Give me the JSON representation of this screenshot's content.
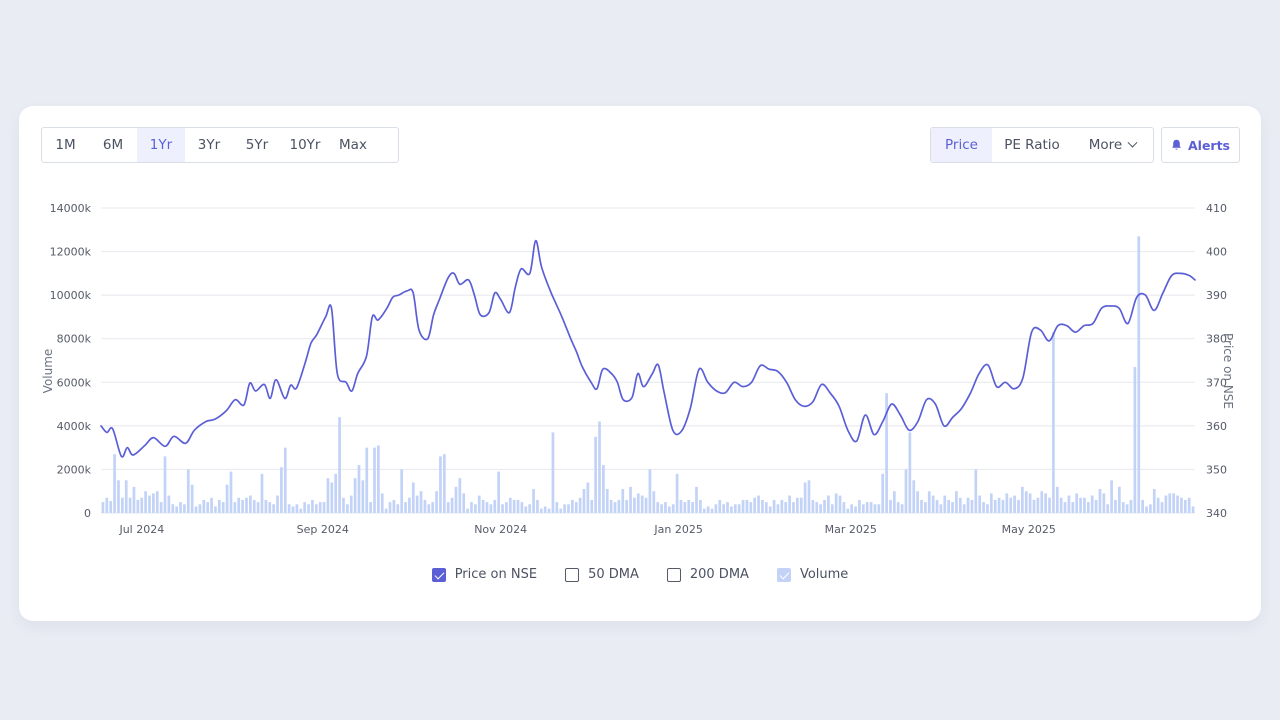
{
  "range_tabs": [
    {
      "label": "1M",
      "active": false
    },
    {
      "label": "6M",
      "active": false
    },
    {
      "label": "1Yr",
      "active": true
    },
    {
      "label": "3Yr",
      "active": false
    },
    {
      "label": "5Yr",
      "active": false
    },
    {
      "label": "10Yr",
      "active": false
    },
    {
      "label": "Max",
      "active": false
    }
  ],
  "metric_tabs": [
    {
      "label": "Price",
      "active": true
    },
    {
      "label": "PE Ratio",
      "active": false
    },
    {
      "label": "More",
      "active": false
    }
  ],
  "alerts_label": "Alerts",
  "colors": {
    "accent": "#5b5fd6",
    "volume": "#c3d3f7",
    "grid": "#e6e8ee"
  },
  "legend": [
    {
      "label": "Price on NSE",
      "checked": true
    },
    {
      "label": "50 DMA",
      "checked": false
    },
    {
      "label": "200 DMA",
      "checked": false
    },
    {
      "label": "Volume",
      "checked": true
    }
  ],
  "chart_data": {
    "type": "line",
    "x_range": [
      "2024-06-17",
      "2025-06-27"
    ],
    "x_ticks": [
      {
        "label": "Jul 2024",
        "date": "2024-07-01"
      },
      {
        "label": "Sep 2024",
        "date": "2024-09-01"
      },
      {
        "label": "Nov 2024",
        "date": "2024-11-01"
      },
      {
        "label": "Jan 2025",
        "date": "2025-01-01"
      },
      {
        "label": "Mar 2025",
        "date": "2025-03-01"
      },
      {
        "label": "May 2025",
        "date": "2025-05-01"
      }
    ],
    "y_left": {
      "label": "Volume",
      "range": [
        0,
        14000
      ],
      "ticks": [
        "0",
        "2000k",
        "4000k",
        "6000k",
        "8000k",
        "10000k",
        "12000k",
        "14000k"
      ]
    },
    "y_right": {
      "label": "Price on NSE",
      "range": [
        340,
        410
      ],
      "ticks": [
        "340",
        "350",
        "360",
        "370",
        "380",
        "390",
        "400",
        "410"
      ]
    },
    "grid": true,
    "legend_position": "bottom-center",
    "series": [
      {
        "name": "Price on NSE",
        "type": "line",
        "data": [
          [
            "2024-06-17",
            360.0
          ],
          [
            "2024-06-19",
            358.5
          ],
          [
            "2024-06-21",
            359.3
          ],
          [
            "2024-06-24",
            353.0
          ],
          [
            "2024-06-26",
            355.0
          ],
          [
            "2024-06-28",
            353.3
          ],
          [
            "2024-07-02",
            355.5
          ],
          [
            "2024-07-05",
            357.3
          ],
          [
            "2024-07-09",
            355.3
          ],
          [
            "2024-07-12",
            357.6
          ],
          [
            "2024-07-16",
            356.0
          ],
          [
            "2024-07-19",
            359.0
          ],
          [
            "2024-07-23",
            361.0
          ],
          [
            "2024-07-26",
            361.5
          ],
          [
            "2024-07-30",
            363.5
          ],
          [
            "2024-08-02",
            366.0
          ],
          [
            "2024-08-05",
            364.8
          ],
          [
            "2024-08-07",
            369.8
          ],
          [
            "2024-08-09",
            368.0
          ],
          [
            "2024-08-12",
            369.5
          ],
          [
            "2024-08-14",
            366.3
          ],
          [
            "2024-08-16",
            370.6
          ],
          [
            "2024-08-19",
            366.3
          ],
          [
            "2024-08-21",
            369.3
          ],
          [
            "2024-08-23",
            368.7
          ],
          [
            "2024-08-26",
            374.5
          ],
          [
            "2024-08-28",
            379.0
          ],
          [
            "2024-08-30",
            381.0
          ],
          [
            "2024-09-02",
            385.0
          ],
          [
            "2024-09-04",
            387.0
          ],
          [
            "2024-09-06",
            372.0
          ],
          [
            "2024-09-09",
            370.0
          ],
          [
            "2024-09-11",
            368.0
          ],
          [
            "2024-09-13",
            372.0
          ],
          [
            "2024-09-16",
            376.0
          ],
          [
            "2024-09-18",
            385.0
          ],
          [
            "2024-09-20",
            384.3
          ],
          [
            "2024-09-23",
            387.0
          ],
          [
            "2024-09-25",
            389.5
          ],
          [
            "2024-09-27",
            390.0
          ],
          [
            "2024-09-30",
            391.0
          ],
          [
            "2024-10-02",
            390.5
          ],
          [
            "2024-10-04",
            382.0
          ],
          [
            "2024-10-07",
            380.0
          ],
          [
            "2024-10-09",
            385.5
          ],
          [
            "2024-10-11",
            389.0
          ],
          [
            "2024-10-14",
            394.0
          ],
          [
            "2024-10-16",
            395.0
          ],
          [
            "2024-10-18",
            392.5
          ],
          [
            "2024-10-21",
            393.5
          ],
          [
            "2024-10-23",
            390.0
          ],
          [
            "2024-10-25",
            385.5
          ],
          [
            "2024-10-28",
            386.0
          ],
          [
            "2024-10-30",
            390.5
          ],
          [
            "2024-11-01",
            389.0
          ],
          [
            "2024-11-04",
            386.0
          ],
          [
            "2024-11-06",
            391.8
          ],
          [
            "2024-11-08",
            396.0
          ],
          [
            "2024-11-11",
            395.0
          ],
          [
            "2024-11-13",
            402.5
          ],
          [
            "2024-11-15",
            396.5
          ],
          [
            "2024-11-18",
            391.0
          ],
          [
            "2024-11-20",
            388.0
          ],
          [
            "2024-11-22",
            385.0
          ],
          [
            "2024-11-25",
            380.0
          ],
          [
            "2024-11-27",
            377.0
          ],
          [
            "2024-11-29",
            373.5
          ],
          [
            "2024-12-02",
            370.0
          ],
          [
            "2024-12-04",
            368.5
          ],
          [
            "2024-12-06",
            373.0
          ],
          [
            "2024-12-09",
            372.0
          ],
          [
            "2024-12-11",
            370.0
          ],
          [
            "2024-12-13",
            366.0
          ],
          [
            "2024-12-16",
            366.5
          ],
          [
            "2024-12-18",
            372.0
          ],
          [
            "2024-12-20",
            369.0
          ],
          [
            "2024-12-23",
            372.0
          ],
          [
            "2024-12-25",
            374.0
          ],
          [
            "2024-12-27",
            367.8
          ],
          [
            "2024-12-30",
            359.0
          ],
          [
            "2025-01-02",
            358.8
          ],
          [
            "2025-01-05",
            364.0
          ],
          [
            "2025-01-08",
            373.0
          ],
          [
            "2025-01-11",
            370.0
          ],
          [
            "2025-01-14",
            368.0
          ],
          [
            "2025-01-17",
            367.6
          ],
          [
            "2025-01-20",
            370.0
          ],
          [
            "2025-01-23",
            369.0
          ],
          [
            "2025-01-26",
            370.0
          ],
          [
            "2025-01-29",
            373.8
          ],
          [
            "2025-02-01",
            373.0
          ],
          [
            "2025-02-04",
            372.5
          ],
          [
            "2025-02-07",
            370.0
          ],
          [
            "2025-02-10",
            366.0
          ],
          [
            "2025-02-13",
            364.5
          ],
          [
            "2025-02-16",
            365.5
          ],
          [
            "2025-02-19",
            369.5
          ],
          [
            "2025-02-22",
            367.5
          ],
          [
            "2025-02-25",
            364.5
          ],
          [
            "2025-02-28",
            359.0
          ],
          [
            "2025-03-03",
            356.5
          ],
          [
            "2025-03-06",
            362.5
          ],
          [
            "2025-03-09",
            358.0
          ],
          [
            "2025-03-12",
            361.0
          ],
          [
            "2025-03-15",
            365.0
          ],
          [
            "2025-03-18",
            362.5
          ],
          [
            "2025-03-21",
            359.0
          ],
          [
            "2025-03-24",
            361.0
          ],
          [
            "2025-03-27",
            366.0
          ],
          [
            "2025-03-30",
            365.0
          ],
          [
            "2025-04-02",
            360.0
          ],
          [
            "2025-04-05",
            362.0
          ],
          [
            "2025-04-08",
            364.0
          ],
          [
            "2025-04-11",
            367.5
          ],
          [
            "2025-04-14",
            372.0
          ],
          [
            "2025-04-17",
            374.0
          ],
          [
            "2025-04-20",
            369.0
          ],
          [
            "2025-04-23",
            370.0
          ],
          [
            "2025-04-26",
            368.5
          ],
          [
            "2025-04-29",
            371.0
          ],
          [
            "2025-05-02",
            381.5
          ],
          [
            "2025-05-05",
            382.0
          ],
          [
            "2025-05-08",
            379.5
          ],
          [
            "2025-05-11",
            383.0
          ],
          [
            "2025-05-14",
            383.0
          ],
          [
            "2025-05-17",
            381.5
          ],
          [
            "2025-05-20",
            383.0
          ],
          [
            "2025-05-23",
            383.5
          ],
          [
            "2025-05-26",
            387.0
          ],
          [
            "2025-05-29",
            387.5
          ],
          [
            "2025-06-01",
            387.0
          ],
          [
            "2025-06-04",
            383.5
          ],
          [
            "2025-06-07",
            389.5
          ],
          [
            "2025-06-10",
            390.0
          ],
          [
            "2025-06-13",
            386.5
          ],
          [
            "2025-06-16",
            390.5
          ],
          [
            "2025-06-19",
            394.5
          ],
          [
            "2025-06-22",
            395.0
          ],
          [
            "2025-06-25",
            394.5
          ],
          [
            "2025-06-27",
            393.5
          ]
        ]
      },
      {
        "name": "Volume",
        "type": "bar",
        "axis": "left",
        "values_k": [
          500,
          700,
          550,
          2700,
          1500,
          700,
          1500,
          700,
          1200,
          600,
          700,
          1000,
          800,
          900,
          1000,
          500,
          2600,
          800,
          400,
          300,
          500,
          400,
          2000,
          1300,
          300,
          400,
          600,
          500,
          700,
          300,
          600,
          500,
          1300,
          1900,
          500,
          700,
          600,
          700,
          800,
          600,
          500,
          1800,
          600,
          500,
          400,
          800,
          2100,
          3000,
          400,
          300,
          400,
          200,
          500,
          400,
          600,
          400,
          500,
          500,
          1600,
          1400,
          1800,
          4400,
          700,
          400,
          800,
          1600,
          2200,
          1500,
          3000,
          500,
          3000,
          3100,
          900,
          200,
          500,
          600,
          400,
          2000,
          500,
          700,
          1400,
          800,
          1000,
          600,
          400,
          500,
          1000,
          2600,
          2700,
          500,
          700,
          1200,
          1600,
          900,
          200,
          500,
          400,
          800,
          600,
          500,
          400,
          600,
          1900,
          400,
          500,
          700,
          600,
          600,
          500,
          300,
          400,
          1100,
          600,
          200,
          300,
          200,
          3700,
          500,
          200,
          400,
          400,
          600,
          500,
          700,
          1100,
          1400,
          600,
          3500,
          4200,
          2200,
          1100,
          600,
          500,
          600,
          1100,
          600,
          1200,
          700,
          900,
          800,
          700,
          2000,
          1000,
          500,
          400,
          500,
          300,
          400,
          1800,
          600,
          500,
          600,
          500,
          1200,
          600,
          200,
          300,
          200,
          400,
          600,
          400,
          500,
          300,
          400,
          400,
          600,
          600,
          500,
          700,
          800,
          600,
          500,
          300,
          600,
          400,
          600,
          500,
          800,
          500,
          700,
          700,
          1400,
          1500,
          600,
          500,
          400,
          600,
          800,
          400,
          900,
          800,
          500,
          200,
          400,
          300,
          600,
          400,
          500,
          500,
          400,
          400,
          1800,
          5500,
          600,
          1000,
          500,
          400,
          2000,
          3700,
          1500,
          1000,
          600,
          500,
          1000,
          800,
          600,
          400,
          800,
          600,
          500,
          1000,
          700,
          400,
          700,
          600,
          2000,
          800,
          500,
          400,
          900,
          600,
          700,
          600,
          900,
          700,
          800,
          600,
          1200,
          1000,
          900,
          600,
          700,
          1000,
          900,
          700,
          8300,
          1200,
          700,
          500,
          800,
          500,
          900,
          700,
          700,
          500,
          800,
          600,
          1100,
          900,
          400,
          1500,
          600,
          1200,
          500,
          400,
          600,
          6700,
          12700,
          600,
          300,
          400,
          1100,
          700,
          500,
          800,
          900,
          900,
          800,
          700,
          600,
          700,
          300
        ]
      }
    ]
  }
}
